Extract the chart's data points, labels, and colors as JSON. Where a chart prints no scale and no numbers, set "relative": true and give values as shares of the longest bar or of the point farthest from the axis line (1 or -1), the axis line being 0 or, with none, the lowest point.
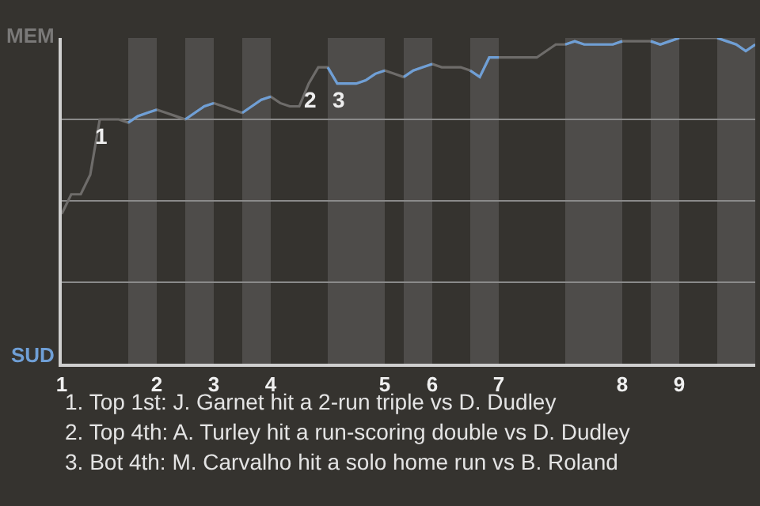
{
  "chart_data": {
    "type": "line",
    "categories": [
      "1",
      null,
      null,
      null,
      null,
      null,
      null,
      null,
      null,
      null,
      "2",
      null,
      null,
      null,
      null,
      null,
      "3",
      null,
      null,
      null,
      null,
      null,
      "4",
      null,
      null,
      null,
      null,
      null,
      null,
      null,
      null,
      null,
      null,
      null,
      "5",
      null,
      null,
      null,
      null,
      "6",
      null,
      null,
      null,
      null,
      null,
      null,
      "7",
      null,
      null,
      null,
      null,
      null,
      null,
      null,
      null,
      null,
      null,
      null,
      null,
      "8",
      null,
      null,
      null,
      null,
      null,
      "9",
      null,
      null,
      null,
      null,
      null,
      null,
      null,
      null
    ],
    "relative": true,
    "grid": "y",
    "marker": "none",
    "line_style": "solid",
    "series": [
      {
        "color": "#6e6c6a",
        "values": [
          0.46,
          0.52,
          0.52,
          0.58,
          0.75,
          0.75,
          0.75,
          0.74,
          0.76,
          0.77,
          0.78,
          0.77,
          0.76,
          0.75,
          0.77,
          0.79,
          0.8,
          0.79,
          0.78,
          0.77,
          0.79,
          0.81,
          0.82,
          0.8,
          0.79,
          0.79,
          0.86,
          0.91,
          0.91,
          0.86,
          0.86,
          0.86,
          0.87,
          0.89,
          0.9,
          0.89,
          0.88,
          0.9,
          0.91,
          0.92,
          0.91,
          0.91,
          0.91,
          0.9,
          0.88,
          0.94,
          0.94,
          0.94,
          0.94,
          0.94,
          0.94,
          0.96,
          0.98,
          0.98,
          0.99,
          0.98,
          0.98,
          0.98,
          0.98,
          0.99,
          0.99,
          0.99,
          0.99,
          0.98,
          0.99,
          1.0,
          1.0,
          1.0,
          1.0,
          1.0,
          0.99,
          0.98,
          0.96,
          0.98
        ]
      },
      {
        "color": "#6f9fd6",
        "values": [
          null,
          null,
          null,
          null,
          null,
          null,
          null,
          0.74,
          0.76,
          0.77,
          0.78,
          null,
          null,
          0.75,
          0.77,
          0.79,
          0.8,
          null,
          null,
          0.77,
          0.79,
          0.81,
          0.82,
          null,
          null,
          null,
          null,
          null,
          0.91,
          0.86,
          0.86,
          0.86,
          0.87,
          0.89,
          0.9,
          null,
          0.88,
          0.9,
          0.91,
          0.92,
          null,
          null,
          null,
          0.9,
          0.88,
          0.94,
          0.94,
          null,
          null,
          null,
          null,
          null,
          null,
          0.98,
          0.99,
          0.98,
          0.98,
          0.98,
          0.98,
          0.99,
          null,
          null,
          0.99,
          0.98,
          0.99,
          1.0,
          null,
          null,
          null,
          1.0,
          0.99,
          0.98,
          0.96,
          0.98
        ]
      }
    ],
    "annotations": [
      "MEM",
      "SUD",
      {
        "text": "1",
        "y": 0.75
      },
      {
        "text": "2",
        "y": 0.86
      },
      {
        "text": "3",
        "y": 0.86
      },
      "1. Top 1st: J. Garnet hit a 2-run triple vs D. Dudley",
      "2. Top 4th: A. Turley hit a run-scoring double vs D. Dudley",
      "3. Bot 4th: M. Carvalho hit a solo home run vs B. Roland"
    ]
  }
}
